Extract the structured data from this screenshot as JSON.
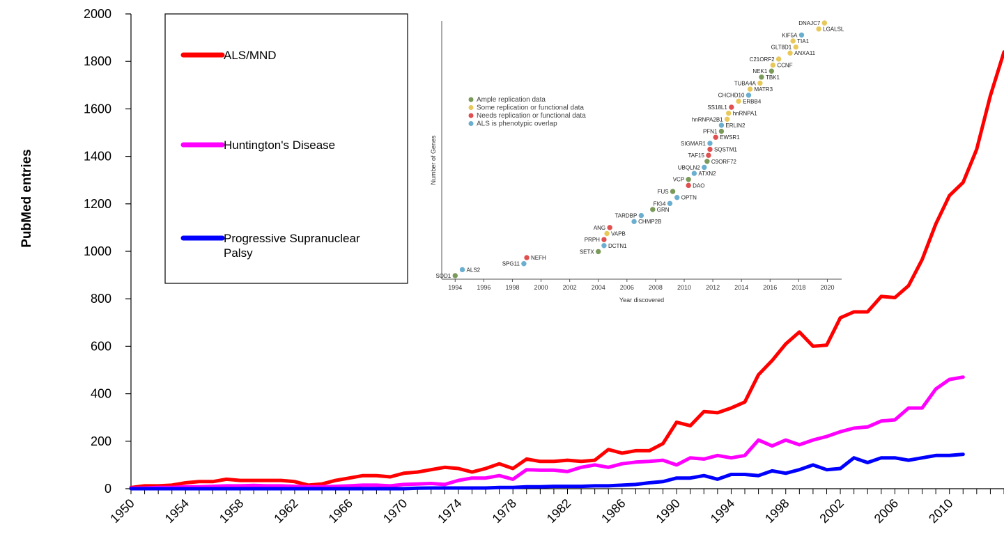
{
  "chart_data": [
    {
      "type": "line",
      "title": "",
      "xlabel": "",
      "ylabel": "PubMed entries",
      "xlim": [
        1950,
        2014
      ],
      "ylim": [
        0,
        2000
      ],
      "yticks": [
        0,
        200,
        400,
        600,
        800,
        1000,
        1200,
        1400,
        1600,
        1800,
        2000
      ],
      "xtick_labels": [
        "1950",
        "1954",
        "1958",
        "1962",
        "1966",
        "1970",
        "1974",
        "1978",
        "1982",
        "1986",
        "1990",
        "1994",
        "1998",
        "2002",
        "2006",
        "2010"
      ],
      "legend_position": "top-left",
      "grid": false,
      "series": [
        {
          "name": "ALS/MND",
          "color": "#ff0000",
          "x": [
            1950,
            1951,
            1952,
            1953,
            1954,
            1955,
            1956,
            1957,
            1958,
            1959,
            1960,
            1961,
            1962,
            1963,
            1964,
            1965,
            1966,
            1967,
            1968,
            1969,
            1970,
            1971,
            1972,
            1973,
            1974,
            1975,
            1976,
            1977,
            1978,
            1979,
            1980,
            1981,
            1982,
            1983,
            1984,
            1985,
            1986,
            1987,
            1988,
            1989,
            1990,
            1991,
            1992,
            1993,
            1994,
            1995,
            1996,
            1997,
            1998,
            1999,
            2000,
            2001,
            2002,
            2003,
            2004,
            2005,
            2006,
            2007,
            2008,
            2009,
            2010,
            2011,
            2012,
            2013,
            2014
          ],
          "values": [
            5,
            12,
            12,
            15,
            25,
            30,
            30,
            40,
            35,
            35,
            35,
            35,
            30,
            15,
            20,
            35,
            45,
            55,
            55,
            50,
            65,
            70,
            80,
            90,
            85,
            70,
            85,
            105,
            85,
            125,
            115,
            115,
            120,
            115,
            120,
            165,
            150,
            160,
            160,
            190,
            280,
            265,
            325,
            320,
            340,
            365,
            480,
            540,
            610,
            660,
            600,
            605,
            720,
            745,
            745,
            810,
            805,
            855,
            965,
            1115,
            1235,
            1290,
            1430,
            1655,
            1840
          ]
        },
        {
          "name": "Huntington's Disease",
          "color": "#ff00ff",
          "x": [
            1950,
            1951,
            1952,
            1953,
            1954,
            1955,
            1956,
            1957,
            1958,
            1959,
            1960,
            1961,
            1962,
            1963,
            1964,
            1965,
            1966,
            1967,
            1968,
            1969,
            1970,
            1971,
            1972,
            1973,
            1974,
            1975,
            1976,
            1977,
            1978,
            1979,
            1980,
            1981,
            1982,
            1983,
            1984,
            1985,
            1986,
            1987,
            1988,
            1989,
            1990,
            1991,
            1992,
            1993,
            1994,
            1995,
            1996,
            1997,
            1998,
            1999,
            2000,
            2001,
            2002,
            2003,
            2004,
            2005,
            2006,
            2007,
            2008,
            2009,
            2010,
            2011
          ],
          "values": [
            2,
            3,
            5,
            5,
            8,
            8,
            10,
            12,
            12,
            14,
            12,
            12,
            10,
            8,
            8,
            10,
            12,
            15,
            15,
            12,
            18,
            20,
            22,
            18,
            35,
            45,
            45,
            55,
            40,
            80,
            78,
            78,
            72,
            90,
            100,
            90,
            105,
            112,
            115,
            120,
            100,
            130,
            125,
            140,
            130,
            140,
            205,
            180,
            205,
            185,
            205,
            220,
            240,
            255,
            260,
            285,
            290,
            340,
            340,
            420,
            460,
            470
          ]
        },
        {
          "name": "Progressive Supranuclear Palsy",
          "color": "#0000ff",
          "x": [
            1950,
            1951,
            1952,
            1953,
            1954,
            1955,
            1956,
            1957,
            1958,
            1959,
            1960,
            1961,
            1962,
            1963,
            1964,
            1965,
            1966,
            1967,
            1968,
            1969,
            1970,
            1971,
            1972,
            1973,
            1974,
            1975,
            1976,
            1977,
            1978,
            1979,
            1980,
            1981,
            1982,
            1983,
            1984,
            1985,
            1986,
            1987,
            1988,
            1989,
            1990,
            1991,
            1992,
            1993,
            1994,
            1995,
            1996,
            1997,
            1998,
            1999,
            2000,
            2001,
            2002,
            2003,
            2004,
            2005,
            2006,
            2007,
            2008,
            2009,
            2010,
            2011
          ],
          "values": [
            0,
            0,
            0,
            0,
            0,
            0,
            0,
            0,
            0,
            0,
            0,
            0,
            0,
            0,
            0,
            0,
            0,
            0,
            0,
            0,
            0,
            2,
            3,
            3,
            3,
            3,
            3,
            5,
            5,
            8,
            8,
            10,
            10,
            10,
            12,
            12,
            15,
            18,
            25,
            30,
            45,
            45,
            55,
            40,
            60,
            60,
            55,
            75,
            65,
            80,
            100,
            80,
            85,
            130,
            110,
            130,
            130,
            120,
            130,
            140,
            140,
            145
          ]
        }
      ]
    },
    {
      "type": "scatter",
      "title": "",
      "xlabel": "Year discovered",
      "ylabel": "Number of Genes",
      "xlim": [
        1993.5,
        2021
      ],
      "xtick_labels": [
        "1994",
        "1996",
        "1998",
        "2000",
        "2002",
        "2004",
        "2006",
        "2008",
        "2010",
        "2012",
        "2014",
        "2016",
        "2018",
        "2020"
      ],
      "legend_position": "top-left",
      "legend": [
        {
          "label": "Ample replication data",
          "color": "#7a9a5a"
        },
        {
          "label": "Some replication or functional data",
          "color": "#e8c85a"
        },
        {
          "label": "Needs replication or functional data",
          "color": "#e05050"
        },
        {
          "label": "ALS is phenotypic overlap",
          "color": "#6aaed0"
        }
      ],
      "points": [
        {
          "gene": "SOD1",
          "year": 1994,
          "n": 1,
          "cat": 0
        },
        {
          "gene": "ALS2",
          "year": 1994.5,
          "n": 2,
          "cat": 3
        },
        {
          "gene": "SPG11",
          "year": 1998.8,
          "n": 3,
          "cat": 3
        },
        {
          "gene": "NEFH",
          "year": 1999,
          "n": 4,
          "cat": 2
        },
        {
          "gene": "SETX",
          "year": 2004,
          "n": 5,
          "cat": 0
        },
        {
          "gene": "DCTN1",
          "year": 2004.4,
          "n": 6,
          "cat": 3
        },
        {
          "gene": "PRPH",
          "year": 2004.4,
          "n": 7,
          "cat": 2
        },
        {
          "gene": "VAPB",
          "year": 2004.6,
          "n": 8,
          "cat": 1
        },
        {
          "gene": "ANG",
          "year": 2004.8,
          "n": 9,
          "cat": 2
        },
        {
          "gene": "CHMP2B",
          "year": 2006.5,
          "n": 10,
          "cat": 3
        },
        {
          "gene": "TARDBP",
          "year": 2007,
          "n": 11,
          "cat": 3
        },
        {
          "gene": "GRN",
          "year": 2007.8,
          "n": 12,
          "cat": 0
        },
        {
          "gene": "FIG4",
          "year": 2009,
          "n": 13,
          "cat": 3
        },
        {
          "gene": "OPTN",
          "year": 2009.5,
          "n": 14,
          "cat": 3
        },
        {
          "gene": "FUS",
          "year": 2009.2,
          "n": 15,
          "cat": 0
        },
        {
          "gene": "DAO",
          "year": 2010.3,
          "n": 16,
          "cat": 2
        },
        {
          "gene": "VCP",
          "year": 2010.3,
          "n": 17,
          "cat": 0
        },
        {
          "gene": "ATXN2",
          "year": 2010.7,
          "n": 18,
          "cat": 3
        },
        {
          "gene": "UBQLN2",
          "year": 2011.4,
          "n": 19,
          "cat": 3
        },
        {
          "gene": "C9ORF72",
          "year": 2011.6,
          "n": 20,
          "cat": 0
        },
        {
          "gene": "TAF15",
          "year": 2011.7,
          "n": 21,
          "cat": 2
        },
        {
          "gene": "SQSTM1",
          "year": 2011.8,
          "n": 22,
          "cat": 2
        },
        {
          "gene": "SIGMAR1",
          "year": 2011.8,
          "n": 23,
          "cat": 3
        },
        {
          "gene": "EWSR1",
          "year": 2012.2,
          "n": 24,
          "cat": 2
        },
        {
          "gene": "PFN1",
          "year": 2012.6,
          "n": 25,
          "cat": 0
        },
        {
          "gene": "ERLIN2",
          "year": 2012.6,
          "n": 26,
          "cat": 3
        },
        {
          "gene": "hnRNPA2B1",
          "year": 2013,
          "n": 27,
          "cat": 1
        },
        {
          "gene": "hnRNPA1",
          "year": 2013.1,
          "n": 28,
          "cat": 1
        },
        {
          "gene": "SS18L1",
          "year": 2013.3,
          "n": 29,
          "cat": 2
        },
        {
          "gene": "ERBB4",
          "year": 2013.8,
          "n": 30,
          "cat": 1
        },
        {
          "gene": "CHCHD10",
          "year": 2014.5,
          "n": 31,
          "cat": 3
        },
        {
          "gene": "MATR3",
          "year": 2014.6,
          "n": 32,
          "cat": 1
        },
        {
          "gene": "TUBA4A",
          "year": 2015.3,
          "n": 33,
          "cat": 1
        },
        {
          "gene": "TBK1",
          "year": 2015.4,
          "n": 34,
          "cat": 0
        },
        {
          "gene": "NEK1",
          "year": 2016.1,
          "n": 35,
          "cat": 0
        },
        {
          "gene": "CCNF",
          "year": 2016.2,
          "n": 36,
          "cat": 1
        },
        {
          "gene": "C21ORF2",
          "year": 2016.6,
          "n": 37,
          "cat": 1
        },
        {
          "gene": "ANXA11",
          "year": 2017.4,
          "n": 38,
          "cat": 1
        },
        {
          "gene": "GLT8D1",
          "year": 2017.8,
          "n": 39,
          "cat": 1
        },
        {
          "gene": "TIA1",
          "year": 2017.6,
          "n": 40,
          "cat": 1
        },
        {
          "gene": "KIF5A",
          "year": 2018.2,
          "n": 41,
          "cat": 3
        },
        {
          "gene": "LGALSL",
          "year": 2019.4,
          "n": 42,
          "cat": 1
        },
        {
          "gene": "DNAJC7",
          "year": 2019.8,
          "n": 43,
          "cat": 1
        }
      ]
    }
  ]
}
